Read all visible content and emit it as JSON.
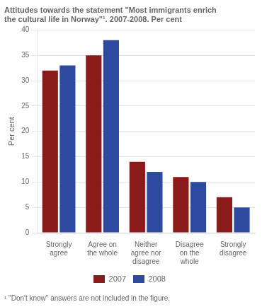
{
  "chart_data": {
    "type": "bar",
    "title": [
      "Attitudes towards the statement \"Most immigrants enrich",
      "the cultural life in Norway\"¹. 2007-2008. Per cent"
    ],
    "ylabel": "Per cent",
    "categories": [
      "Strongly\nagree",
      "Agree on\nthe whole",
      "Neither\nagree nor\ndisagree",
      "Disagree\non the\nwhole",
      "Strongly\ndisagree"
    ],
    "series": [
      {
        "name": "2007",
        "color": "#8B1A1A",
        "values": [
          32,
          35,
          14,
          11,
          7
        ]
      },
      {
        "name": "2008",
        "color": "#2E4A9E",
        "values": [
          33,
          38,
          12,
          10,
          5
        ]
      }
    ],
    "ylim": [
      0,
      40
    ],
    "yticks": [
      0,
      5,
      10,
      15,
      20,
      25,
      30,
      35,
      40
    ],
    "grid": true,
    "legend": "bottom",
    "annotations": [
      "¹ \"Don't know\" answers are not included in the figure."
    ]
  }
}
